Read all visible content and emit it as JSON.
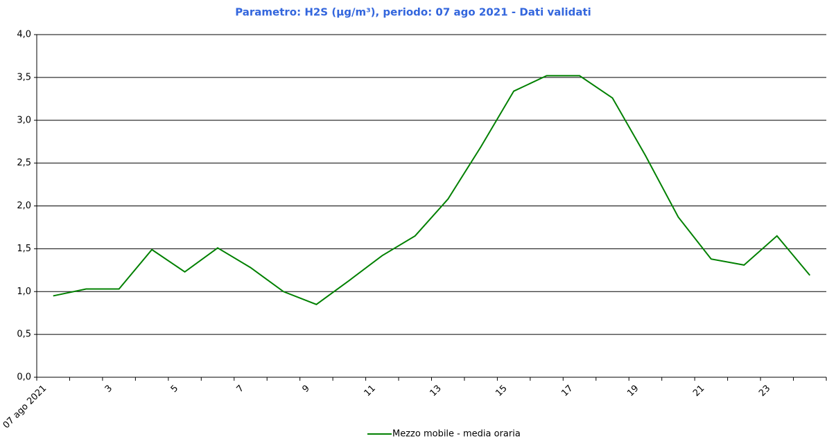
{
  "chart_data": {
    "type": "line",
    "title": "Parametro: H2S (µg/m³), periodo: 07 ago 2021 - Dati validati",
    "categories": [
      "07 ago 2021",
      null,
      "3",
      null,
      "5",
      null,
      "7",
      null,
      "9",
      null,
      "11",
      null,
      "13",
      null,
      "15",
      null,
      "17",
      null,
      "19",
      null,
      "21",
      null,
      "23",
      null
    ],
    "series": [
      {
        "name": "Mezzo mobile - media oraria",
        "color": "#008000",
        "values": [
          0.95,
          1.03,
          1.03,
          1.49,
          1.23,
          1.51,
          1.28,
          1.0,
          0.85,
          1.13,
          1.42,
          1.65,
          2.08,
          2.69,
          3.34,
          3.52,
          3.52,
          3.26,
          2.59,
          1.87,
          1.38,
          1.31,
          1.65,
          1.19
        ]
      }
    ],
    "ylim": [
      0,
      4
    ],
    "yticks": [
      {
        "value": 0,
        "label": "0,0"
      },
      {
        "value": 0.5,
        "label": "0,5"
      },
      {
        "value": 1,
        "label": "1,0"
      },
      {
        "value": 1.5,
        "label": "1,5"
      },
      {
        "value": 2,
        "label": "2,0"
      },
      {
        "value": 2.5,
        "label": "2,5"
      },
      {
        "value": 3,
        "label": "3,0"
      },
      {
        "value": 3.5,
        "label": "3,5"
      },
      {
        "value": 4,
        "label": "4,0"
      }
    ],
    "grid": true,
    "legend": "bottom"
  }
}
